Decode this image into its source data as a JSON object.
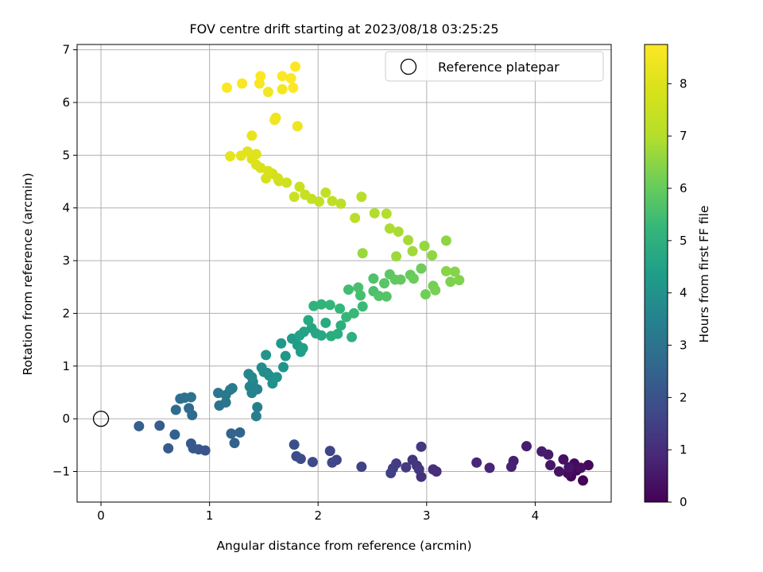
{
  "chart_data": {
    "type": "scatter",
    "title": "FOV centre drift starting at 2023/08/18 03:25:25",
    "xlabel": "Angular distance from reference (arcmin)",
    "ylabel": "Rotation from reference (arcmin)",
    "xlim": [
      -0.22,
      4.7
    ],
    "ylim": [
      -1.58,
      7.1
    ],
    "xticks": [
      "0",
      "1",
      "2",
      "3",
      "4"
    ],
    "yticks": [
      "−1",
      "0",
      "1",
      "2",
      "3",
      "4",
      "5",
      "6",
      "7"
    ],
    "grid": true,
    "legend": {
      "placement": "top-right",
      "entries": [
        "Reference platepar"
      ]
    },
    "reference_point": {
      "x": 0,
      "y": 0
    },
    "colorbar": {
      "label": "Hours from first FF file",
      "range": [
        0,
        8.75
      ],
      "ticks": [
        "0",
        "1",
        "2",
        "3",
        "4",
        "5",
        "6",
        "7",
        "8"
      ],
      "colormap": "viridis"
    },
    "points": [
      [
        4.44,
        -1.17,
        0.05
      ],
      [
        4.33,
        -1.09,
        0.08
      ],
      [
        4.38,
        -0.98,
        0.12
      ],
      [
        4.49,
        -0.88,
        0.15
      ],
      [
        4.36,
        -0.85,
        0.2
      ],
      [
        4.3,
        -1.03,
        0.25
      ],
      [
        4.42,
        -0.93,
        0.3
      ],
      [
        4.26,
        -0.77,
        0.35
      ],
      [
        4.22,
        -1.0,
        0.4
      ],
      [
        4.31,
        -0.92,
        0.45
      ],
      [
        4.14,
        -0.88,
        0.5
      ],
      [
        4.12,
        -0.68,
        0.55
      ],
      [
        4.06,
        -0.62,
        0.6
      ],
      [
        3.92,
        -0.52,
        0.65
      ],
      [
        3.8,
        -0.8,
        0.7
      ],
      [
        3.78,
        -0.91,
        0.75
      ],
      [
        3.58,
        -0.93,
        0.8
      ],
      [
        3.46,
        -0.83,
        0.85
      ],
      [
        3.09,
        -1.0,
        1.0
      ],
      [
        3.06,
        -0.96,
        1.05
      ],
      [
        2.95,
        -1.1,
        1.1
      ],
      [
        2.91,
        -0.89,
        1.15
      ],
      [
        2.87,
        -0.78,
        1.2
      ],
      [
        2.93,
        -0.96,
        1.25
      ],
      [
        2.95,
        -0.53,
        1.3
      ],
      [
        2.81,
        -0.92,
        1.35
      ],
      [
        2.72,
        -0.85,
        1.4
      ],
      [
        2.69,
        -0.94,
        1.45
      ],
      [
        2.67,
        -1.03,
        1.5
      ],
      [
        2.4,
        -0.91,
        1.55
      ],
      [
        2.17,
        -0.78,
        1.6
      ],
      [
        2.11,
        -0.61,
        1.65
      ],
      [
        2.13,
        -0.83,
        1.7
      ],
      [
        1.95,
        -0.82,
        1.75
      ],
      [
        1.84,
        -0.76,
        1.8
      ],
      [
        1.8,
        -0.71,
        1.85
      ],
      [
        1.78,
        -0.49,
        1.9
      ],
      [
        0.96,
        -0.6,
        2.05
      ],
      [
        0.9,
        -0.58,
        2.1
      ],
      [
        0.85,
        -0.56,
        2.15
      ],
      [
        0.83,
        -0.47,
        2.2
      ],
      [
        0.62,
        -0.56,
        2.25
      ],
      [
        0.54,
        -0.13,
        2.3
      ],
      [
        0.35,
        -0.14,
        2.35
      ],
      [
        0.68,
        -0.3,
        2.4
      ],
      [
        1.23,
        -0.46,
        2.45
      ],
      [
        1.2,
        -0.28,
        2.5
      ],
      [
        1.28,
        -0.26,
        2.55
      ],
      [
        0.84,
        0.07,
        2.7
      ],
      [
        0.81,
        0.2,
        2.75
      ],
      [
        0.69,
        0.17,
        2.8
      ],
      [
        0.73,
        0.38,
        2.85
      ],
      [
        0.77,
        0.4,
        2.9
      ],
      [
        0.83,
        0.41,
        2.95
      ],
      [
        1.09,
        0.25,
        3.0
      ],
      [
        1.15,
        0.31,
        3.05
      ],
      [
        1.08,
        0.49,
        3.1
      ],
      [
        1.15,
        0.45,
        3.15
      ],
      [
        1.19,
        0.55,
        3.2
      ],
      [
        1.21,
        0.58,
        3.25
      ],
      [
        1.43,
        0.05,
        3.35
      ],
      [
        1.44,
        0.22,
        3.4
      ],
      [
        1.39,
        0.49,
        3.45
      ],
      [
        1.44,
        0.56,
        3.5
      ],
      [
        1.37,
        0.61,
        3.55
      ],
      [
        1.4,
        0.7,
        3.6
      ],
      [
        1.36,
        0.85,
        3.65
      ],
      [
        1.39,
        0.79,
        3.7
      ],
      [
        1.48,
        0.97,
        3.75
      ],
      [
        1.5,
        0.89,
        3.8
      ],
      [
        1.53,
        0.87,
        3.85
      ],
      [
        1.55,
        0.82,
        3.9
      ],
      [
        1.58,
        0.67,
        3.95
      ],
      [
        1.62,
        0.79,
        4.0
      ],
      [
        1.52,
        1.21,
        4.05
      ],
      [
        1.68,
        0.98,
        4.1
      ],
      [
        1.7,
        1.19,
        4.15
      ],
      [
        1.66,
        1.43,
        4.2
      ],
      [
        1.76,
        1.52,
        4.3
      ],
      [
        1.81,
        1.4,
        4.35
      ],
      [
        1.84,
        1.27,
        4.4
      ],
      [
        1.86,
        1.34,
        4.45
      ],
      [
        1.83,
        1.58,
        4.5
      ],
      [
        1.87,
        1.65,
        4.55
      ],
      [
        1.94,
        1.72,
        4.6
      ],
      [
        1.98,
        1.62,
        4.65
      ],
      [
        2.03,
        1.58,
        4.7
      ],
      [
        1.91,
        1.87,
        4.75
      ],
      [
        2.07,
        1.82,
        4.8
      ],
      [
        2.12,
        1.57,
        4.85
      ],
      [
        2.18,
        1.61,
        4.9
      ],
      [
        2.21,
        1.77,
        4.95
      ],
      [
        2.31,
        1.55,
        5.0
      ],
      [
        1.96,
        2.14,
        5.05
      ],
      [
        2.03,
        2.17,
        5.1
      ],
      [
        2.11,
        2.16,
        5.15
      ],
      [
        2.2,
        2.09,
        5.2
      ],
      [
        2.26,
        1.93,
        5.25
      ],
      [
        2.33,
        2.0,
        5.3
      ],
      [
        2.41,
        2.13,
        5.35
      ],
      [
        2.28,
        2.45,
        5.45
      ],
      [
        2.39,
        2.34,
        5.5
      ],
      [
        2.37,
        2.49,
        5.55
      ],
      [
        2.51,
        2.42,
        5.6
      ],
      [
        2.51,
        2.66,
        5.65
      ],
      [
        2.56,
        2.33,
        5.7
      ],
      [
        2.63,
        2.32,
        5.75
      ],
      [
        2.61,
        2.57,
        5.8
      ],
      [
        2.66,
        2.74,
        5.85
      ],
      [
        2.71,
        2.64,
        5.9
      ],
      [
        2.76,
        2.64,
        5.95
      ],
      [
        2.85,
        2.73,
        6.0
      ],
      [
        2.88,
        2.66,
        6.05
      ],
      [
        2.95,
        2.85,
        6.1
      ],
      [
        2.99,
        2.36,
        6.15
      ],
      [
        3.06,
        2.52,
        6.2
      ],
      [
        3.08,
        2.44,
        6.25
      ],
      [
        3.22,
        2.6,
        6.3
      ],
      [
        3.3,
        2.63,
        6.35
      ],
      [
        3.26,
        2.79,
        6.4
      ],
      [
        3.18,
        2.8,
        6.45
      ],
      [
        3.18,
        3.38,
        6.5
      ],
      [
        3.05,
        3.1,
        6.55
      ],
      [
        2.98,
        3.28,
        6.6
      ],
      [
        2.41,
        3.14,
        6.65
      ],
      [
        2.72,
        3.08,
        6.7
      ],
      [
        2.87,
        3.18,
        6.75
      ],
      [
        2.83,
        3.39,
        6.8
      ],
      [
        2.74,
        3.55,
        6.85
      ],
      [
        2.66,
        3.61,
        6.9
      ],
      [
        2.52,
        3.9,
        6.95
      ],
      [
        2.63,
        3.89,
        7.0
      ],
      [
        2.4,
        4.21,
        7.1
      ],
      [
        2.34,
        3.81,
        7.15
      ],
      [
        2.21,
        4.08,
        7.2
      ],
      [
        2.13,
        4.13,
        7.25
      ],
      [
        2.07,
        4.29,
        7.3
      ],
      [
        2.01,
        4.12,
        7.35
      ],
      [
        1.94,
        4.17,
        7.4
      ],
      [
        1.88,
        4.25,
        7.45
      ],
      [
        1.83,
        4.4,
        7.5
      ],
      [
        1.78,
        4.21,
        7.55
      ],
      [
        1.71,
        4.48,
        7.6
      ],
      [
        1.64,
        4.51,
        7.65
      ],
      [
        1.63,
        4.56,
        7.7
      ],
      [
        1.58,
        4.65,
        7.75
      ],
      [
        1.52,
        4.56,
        7.8
      ],
      [
        1.54,
        4.7,
        7.85
      ],
      [
        1.47,
        4.76,
        7.9
      ],
      [
        1.43,
        4.82,
        7.95
      ],
      [
        1.39,
        4.93,
        8.0
      ],
      [
        1.43,
        5.02,
        8.05
      ],
      [
        1.35,
        5.07,
        8.1
      ],
      [
        1.29,
        4.99,
        8.15
      ],
      [
        1.19,
        4.98,
        8.2
      ],
      [
        1.39,
        5.37,
        8.25
      ],
      [
        1.81,
        5.55,
        8.35
      ],
      [
        1.61,
        5.71,
        8.4
      ],
      [
        1.6,
        5.67,
        8.45
      ],
      [
        1.54,
        6.2,
        8.5
      ],
      [
        1.67,
        6.25,
        8.55
      ],
      [
        1.46,
        6.36,
        8.6
      ],
      [
        1.3,
        6.36,
        8.65
      ],
      [
        1.16,
        6.28,
        8.7
      ],
      [
        1.47,
        6.5,
        8.72
      ],
      [
        1.67,
        6.5,
        8.72
      ],
      [
        1.75,
        6.46,
        8.72
      ],
      [
        1.77,
        6.28,
        8.73
      ],
      [
        1.79,
        6.68,
        8.74
      ]
    ]
  }
}
